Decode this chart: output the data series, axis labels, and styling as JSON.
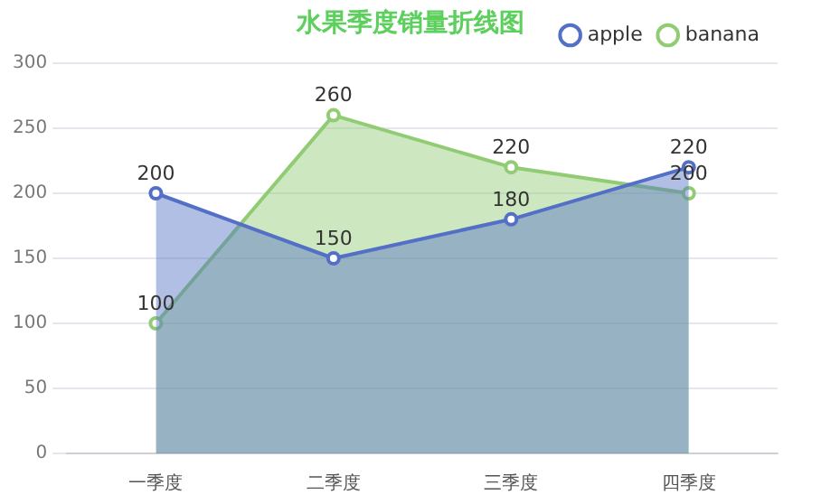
{
  "chart_data": {
    "type": "area",
    "title": "水果季度销量折线图",
    "categories": [
      "一季度",
      "二季度",
      "三季度",
      "四季度"
    ],
    "series": [
      {
        "name": "apple",
        "color": "#5470c6",
        "values": [
          200,
          150,
          180,
          220
        ]
      },
      {
        "name": "banana",
        "color": "#91cc75",
        "values": [
          100,
          260,
          220,
          200
        ]
      }
    ],
    "ylim": [
      0,
      300
    ],
    "yticks": [
      0,
      50,
      100,
      150,
      200,
      250,
      300
    ],
    "grid": "y",
    "legend": "top right",
    "marker": "circle",
    "data_labels": true
  }
}
